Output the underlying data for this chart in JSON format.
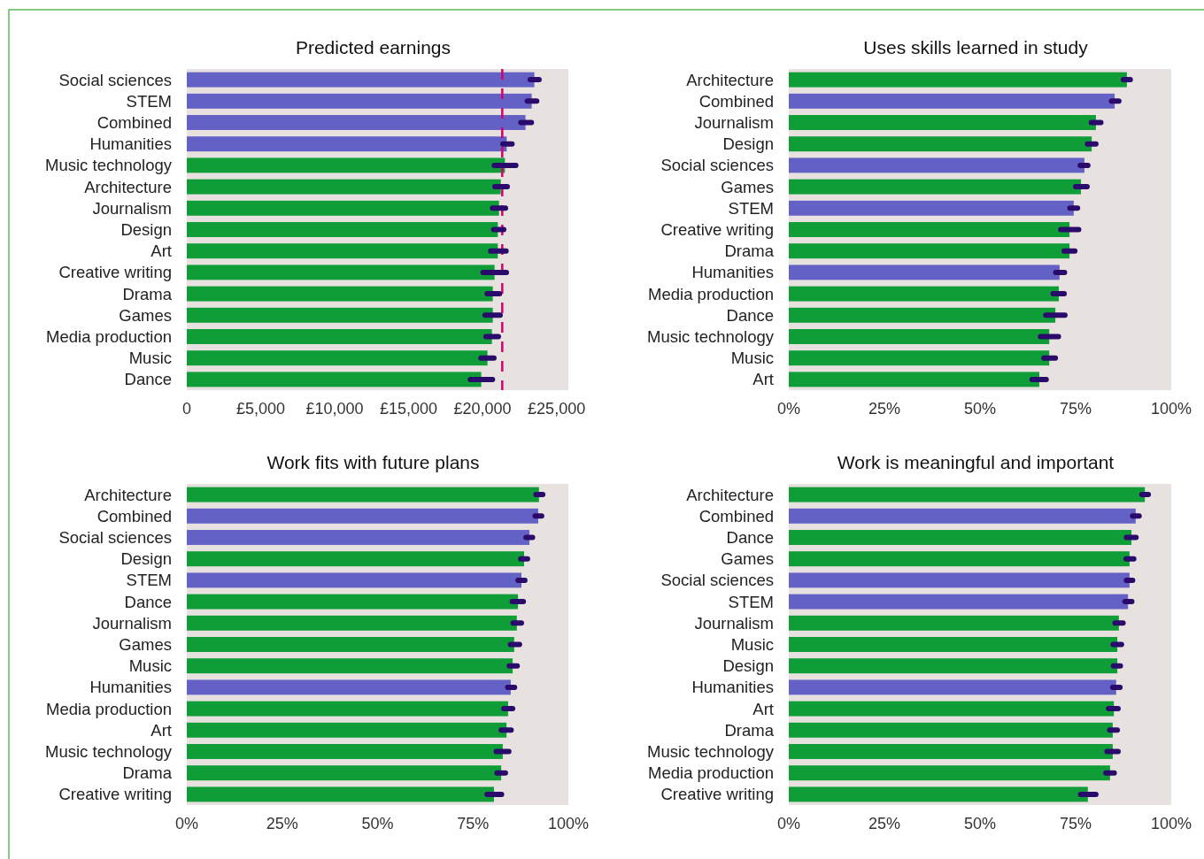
{
  "chart_data": [
    {
      "type": "bar",
      "orientation": "horizontal",
      "title": "Predicted earnings",
      "categories": [
        "Social sciences",
        "STEM",
        "Combined",
        "Humanities",
        "Music technology",
        "Architecture",
        "Journalism",
        "Design",
        "Art",
        "Creative writing",
        "Drama",
        "Games",
        "Media production",
        "Music",
        "Dance"
      ],
      "values": [
        23500,
        23320,
        22900,
        21630,
        21510,
        21230,
        21110,
        21030,
        21030,
        20810,
        20690,
        20690,
        20630,
        20330,
        19910
      ],
      "errors": [
        [
          23220,
          23820
        ],
        [
          23020,
          23660
        ],
        [
          22590,
          23300
        ],
        [
          21370,
          21990
        ],
        [
          20790,
          22250
        ],
        [
          20830,
          21670
        ],
        [
          20670,
          21550
        ],
        [
          20750,
          21430
        ],
        [
          20550,
          21590
        ],
        [
          20030,
          21610
        ],
        [
          20310,
          21150
        ],
        [
          20170,
          21190
        ],
        [
          20230,
          21070
        ],
        [
          19890,
          20770
        ],
        [
          19170,
          20670
        ]
      ],
      "colors": [
        "#6461c6",
        "#6461c6",
        "#6461c6",
        "#6461c6",
        "#0f9d38",
        "#0f9d38",
        "#0f9d38",
        "#0f9d38",
        "#0f9d38",
        "#0f9d38",
        "#0f9d38",
        "#0f9d38",
        "#0f9d38",
        "#0f9d38",
        "#0f9d38"
      ],
      "xlim": [
        0,
        25800
      ],
      "xticks": [
        0,
        {
          "value": 5000,
          "label": "£5,000"
        },
        {
          "value": 10000,
          "label": "£10,000"
        },
        {
          "value": 15000,
          "label": "£15,000"
        },
        {
          "value": 20000,
          "label": "£20,000"
        },
        {
          "value": 25000,
          "label": "£25,000"
        }
      ],
      "ref_lines": [
        {
          "axis": "x",
          "value": 21330,
          "color": "#d6006e",
          "line_style": "dashed"
        }
      ],
      "grid": false
    },
    {
      "type": "bar",
      "orientation": "horizontal",
      "title": "Uses skills learned in study",
      "categories": [
        "Architecture",
        "Combined",
        "Journalism",
        "Design",
        "Social sciences",
        "Games",
        "STEM",
        "Creative writing",
        "Drama",
        "Humanities",
        "Media production",
        "Dance",
        "Music technology",
        "Music",
        "Art"
      ],
      "values": [
        88.4,
        85.2,
        80.3,
        79.2,
        77.3,
        76.4,
        74.5,
        73.4,
        73.4,
        70.8,
        70.6,
        69.7,
        68.1,
        68.1,
        65.5
      ],
      "errors": [
        [
          87.5,
          89.3
        ],
        [
          84.4,
          86.3
        ],
        [
          79.1,
          81.6
        ],
        [
          78.1,
          80.3
        ],
        [
          76.2,
          78.2
        ],
        [
          75.0,
          78.0
        ],
        [
          73.5,
          75.5
        ],
        [
          71.1,
          75.8
        ],
        [
          72.0,
          74.8
        ],
        [
          69.8,
          72.1
        ],
        [
          69.1,
          72.0
        ],
        [
          67.2,
          72.2
        ],
        [
          65.8,
          70.5
        ],
        [
          66.7,
          69.7
        ],
        [
          63.6,
          67.3
        ]
      ],
      "colors": [
        "#0f9d38",
        "#6461c6",
        "#0f9d38",
        "#0f9d38",
        "#6461c6",
        "#0f9d38",
        "#6461c6",
        "#0f9d38",
        "#0f9d38",
        "#6461c6",
        "#0f9d38",
        "#0f9d38",
        "#0f9d38",
        "#0f9d38",
        "#0f9d38"
      ],
      "xlim": [
        0,
        100
      ],
      "xticks": [
        {
          "value": 0,
          "label": "0%"
        },
        {
          "value": 25,
          "label": "25%"
        },
        {
          "value": 50,
          "label": "50%"
        },
        {
          "value": 75,
          "label": "75%"
        },
        {
          "value": 100,
          "label": "100%"
        }
      ],
      "grid": false
    },
    {
      "type": "bar",
      "orientation": "horizontal",
      "title": "Work fits with future plans",
      "categories": [
        "Architecture",
        "Combined",
        "Social sciences",
        "Design",
        "STEM",
        "Dance",
        "Journalism",
        "Games",
        "Music",
        "Humanities",
        "Media production",
        "Art",
        "Music technology",
        "Drama",
        "Creative writing"
      ],
      "values": [
        92.3,
        92.1,
        89.8,
        88.4,
        87.7,
        86.8,
        86.5,
        85.8,
        85.4,
        84.9,
        84.2,
        83.8,
        82.8,
        82.4,
        80.5
      ],
      "errors": [
        [
          91.5,
          93.3
        ],
        [
          91.3,
          93.0
        ],
        [
          88.9,
          90.6
        ],
        [
          87.5,
          89.3
        ],
        [
          86.8,
          88.6
        ],
        [
          85.3,
          88.2
        ],
        [
          85.5,
          87.7
        ],
        [
          84.8,
          87.2
        ],
        [
          84.5,
          86.6
        ],
        [
          84.1,
          85.9
        ],
        [
          83.1,
          85.4
        ],
        [
          82.4,
          85.0
        ],
        [
          81.1,
          84.4
        ],
        [
          81.3,
          83.5
        ],
        [
          78.7,
          82.5
        ]
      ],
      "colors": [
        "#0f9d38",
        "#6461c6",
        "#6461c6",
        "#0f9d38",
        "#6461c6",
        "#0f9d38",
        "#0f9d38",
        "#0f9d38",
        "#0f9d38",
        "#6461c6",
        "#0f9d38",
        "#0f9d38",
        "#0f9d38",
        "#0f9d38",
        "#0f9d38"
      ],
      "xlim": [
        0,
        100
      ],
      "xticks": [
        {
          "value": 0,
          "label": "0%"
        },
        {
          "value": 25,
          "label": "25%"
        },
        {
          "value": 50,
          "label": "50%"
        },
        {
          "value": 75,
          "label": "75%"
        },
        {
          "value": 100,
          "label": "100%"
        }
      ],
      "grid": false
    },
    {
      "type": "bar",
      "orientation": "horizontal",
      "title": "Work is meaningful and important",
      "categories": [
        "Architecture",
        "Combined",
        "Dance",
        "Games",
        "Social sciences",
        "STEM",
        "Journalism",
        "Music",
        "Design",
        "Humanities",
        "Art",
        "Drama",
        "Music technology",
        "Media production",
        "Creative writing"
      ],
      "values": [
        93.1,
        90.7,
        89.6,
        89.1,
        89.1,
        88.7,
        86.3,
        85.9,
        85.9,
        85.6,
        85.0,
        84.7,
        84.7,
        84.0,
        78.2
      ],
      "errors": [
        [
          92.3,
          94.0
        ],
        [
          89.9,
          91.6
        ],
        [
          88.3,
          90.8
        ],
        [
          88.2,
          90.2
        ],
        [
          88.3,
          89.9
        ],
        [
          87.9,
          89.7
        ],
        [
          85.3,
          87.4
        ],
        [
          84.8,
          87.0
        ],
        [
          84.9,
          86.7
        ],
        [
          84.7,
          86.6
        ],
        [
          83.6,
          86.1
        ],
        [
          83.9,
          85.9
        ],
        [
          83.2,
          86.1
        ],
        [
          82.9,
          85.1
        ],
        [
          76.3,
          80.3
        ]
      ],
      "colors": [
        "#0f9d38",
        "#6461c6",
        "#0f9d38",
        "#0f9d38",
        "#6461c6",
        "#6461c6",
        "#0f9d38",
        "#0f9d38",
        "#0f9d38",
        "#6461c6",
        "#0f9d38",
        "#0f9d38",
        "#0f9d38",
        "#0f9d38",
        "#0f9d38"
      ],
      "xlim": [
        0,
        100
      ],
      "xticks": [
        {
          "value": 0,
          "label": "0%"
        },
        {
          "value": 25,
          "label": "25%"
        },
        {
          "value": 50,
          "label": "50%"
        },
        {
          "value": 75,
          "label": "75%"
        },
        {
          "value": 100,
          "label": "100%"
        }
      ],
      "grid": false
    }
  ]
}
